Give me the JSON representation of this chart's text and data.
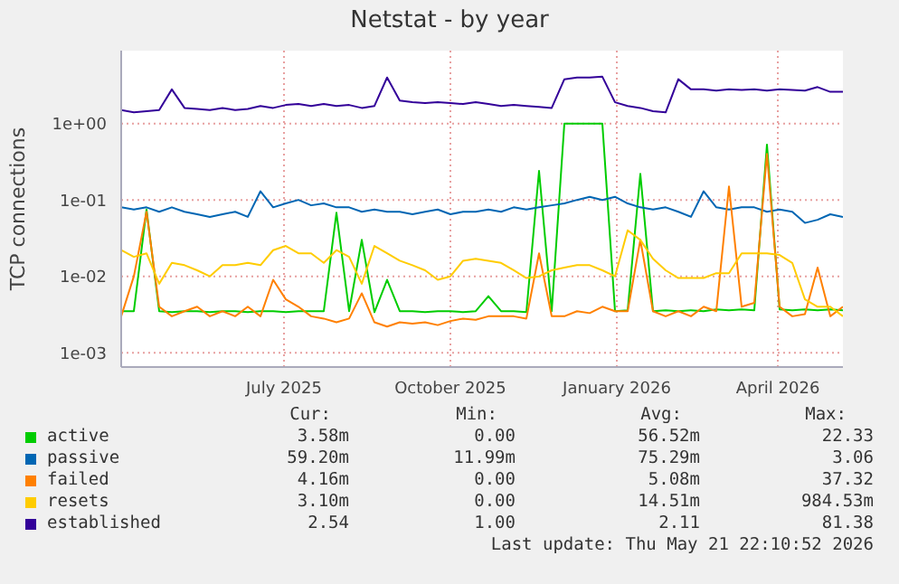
{
  "chart_data": {
    "type": "line",
    "title": "Netstat - by year",
    "ylabel": "TCP connections",
    "log": true,
    "grid": true,
    "legend": "bottom",
    "xlim": [
      "2025-04-17",
      "2026-05-21"
    ],
    "xticks": [
      {
        "value": "2025-07-16",
        "label": "July 2025"
      },
      {
        "value": "2025-10-16",
        "label": "October 2025"
      },
      {
        "value": "2026-01-16",
        "label": "January 2026"
      },
      {
        "value": "2026-04-15",
        "label": "April 2026"
      }
    ],
    "ylim": [
      0.00065,
      9
    ],
    "yticks": [
      {
        "value": 0.001,
        "label": "1e-03"
      },
      {
        "value": 0.01,
        "label": "1e-02"
      },
      {
        "value": 0.1,
        "label": "1e-01"
      },
      {
        "value": 1,
        "label": "1e+00"
      }
    ],
    "x": [
      "2025-04-17",
      "2025-04-24",
      "2025-05-01",
      "2025-05-08",
      "2025-05-15",
      "2025-05-22",
      "2025-05-29",
      "2025-06-05",
      "2025-06-12",
      "2025-06-19",
      "2025-06-26",
      "2025-07-03",
      "2025-07-10",
      "2025-07-17",
      "2025-07-24",
      "2025-07-31",
      "2025-08-07",
      "2025-08-14",
      "2025-08-21",
      "2025-08-28",
      "2025-09-04",
      "2025-09-11",
      "2025-09-18",
      "2025-09-25",
      "2025-10-02",
      "2025-10-09",
      "2025-10-16",
      "2025-10-23",
      "2025-10-30",
      "2025-11-06",
      "2025-11-13",
      "2025-11-20",
      "2025-11-27",
      "2025-12-04",
      "2025-12-11",
      "2025-12-18",
      "2025-12-25",
      "2026-01-01",
      "2026-01-08",
      "2026-01-15",
      "2026-01-22",
      "2026-01-29",
      "2026-02-05",
      "2026-02-12",
      "2026-02-19",
      "2026-02-26",
      "2026-03-05",
      "2026-03-12",
      "2026-03-19",
      "2026-03-26",
      "2026-04-02",
      "2026-04-09",
      "2026-04-16",
      "2026-04-23",
      "2026-04-30",
      "2026-05-07",
      "2026-05-14",
      "2026-05-21"
    ],
    "series": [
      {
        "name": "active",
        "color": "#00cc00",
        "values": [
          0.0035,
          0.0035,
          0.075,
          0.0035,
          0.0034,
          0.0035,
          0.0035,
          0.0034,
          0.0035,
          0.0035,
          0.0034,
          0.0035,
          0.0035,
          0.0034,
          0.0035,
          0.0035,
          0.0035,
          0.068,
          0.0035,
          0.03,
          0.0034,
          0.009,
          0.0035,
          0.0035,
          0.0034,
          0.0035,
          0.0035,
          0.0034,
          0.0035,
          0.0055,
          0.0035,
          0.0035,
          0.0034,
          0.24,
          0.0035,
          1.0,
          1.0,
          1.0,
          1.0,
          0.0035,
          0.0036,
          0.22,
          0.0035,
          0.0036,
          0.0035,
          0.0036,
          0.0035,
          0.0037,
          0.0036,
          0.0037,
          0.0036,
          0.53,
          0.0037,
          0.0036,
          0.0037,
          0.0036,
          0.0037,
          0.0036
        ]
      },
      {
        "name": "passive",
        "color": "#0066b3",
        "values": [
          0.08,
          0.075,
          0.08,
          0.07,
          0.08,
          0.07,
          0.065,
          0.06,
          0.065,
          0.07,
          0.06,
          0.13,
          0.08,
          0.09,
          0.1,
          0.085,
          0.09,
          0.08,
          0.08,
          0.07,
          0.075,
          0.07,
          0.07,
          0.065,
          0.07,
          0.075,
          0.065,
          0.07,
          0.07,
          0.075,
          0.07,
          0.08,
          0.075,
          0.08,
          0.085,
          0.09,
          0.1,
          0.11,
          0.1,
          0.11,
          0.09,
          0.08,
          0.075,
          0.08,
          0.07,
          0.06,
          0.13,
          0.08,
          0.075,
          0.08,
          0.08,
          0.07,
          0.075,
          0.07,
          0.05,
          0.055,
          0.065,
          0.06
        ]
      },
      {
        "name": "failed",
        "color": "#ff8000",
        "values": [
          0.003,
          0.01,
          0.07,
          0.004,
          0.003,
          0.0035,
          0.004,
          0.003,
          0.0035,
          0.003,
          0.004,
          0.003,
          0.009,
          0.005,
          0.004,
          0.003,
          0.0028,
          0.0025,
          0.0028,
          0.006,
          0.0025,
          0.0022,
          0.0025,
          0.0024,
          0.0025,
          0.0023,
          0.0026,
          0.0028,
          0.0027,
          0.003,
          0.003,
          0.003,
          0.0028,
          0.02,
          0.003,
          0.003,
          0.0035,
          0.0033,
          0.004,
          0.0035,
          0.0035,
          0.03,
          0.0035,
          0.003,
          0.0035,
          0.003,
          0.004,
          0.0035,
          0.15,
          0.004,
          0.0045,
          0.4,
          0.004,
          0.003,
          0.0032,
          0.013,
          0.003,
          0.004
        ]
      },
      {
        "name": "resets",
        "color": "#ffcc00",
        "values": [
          0.022,
          0.018,
          0.02,
          0.008,
          0.015,
          0.014,
          0.012,
          0.01,
          0.014,
          0.014,
          0.015,
          0.014,
          0.022,
          0.025,
          0.02,
          0.02,
          0.015,
          0.022,
          0.018,
          0.008,
          0.025,
          0.02,
          0.016,
          0.014,
          0.012,
          0.009,
          0.01,
          0.016,
          0.017,
          0.016,
          0.015,
          0.012,
          0.0095,
          0.01,
          0.012,
          0.013,
          0.014,
          0.014,
          0.012,
          0.01,
          0.04,
          0.03,
          0.017,
          0.012,
          0.0095,
          0.0095,
          0.0095,
          0.011,
          0.011,
          0.02,
          0.02,
          0.02,
          0.019,
          0.015,
          0.005,
          0.004,
          0.004,
          0.003
        ]
      },
      {
        "name": "established",
        "color": "#330099",
        "values": [
          1.5,
          1.4,
          1.45,
          1.5,
          2.8,
          1.6,
          1.55,
          1.5,
          1.6,
          1.5,
          1.55,
          1.7,
          1.6,
          1.75,
          1.8,
          1.7,
          1.8,
          1.7,
          1.75,
          1.6,
          1.7,
          4.0,
          2.0,
          1.9,
          1.85,
          1.9,
          1.85,
          1.8,
          1.9,
          1.8,
          1.7,
          1.75,
          1.7,
          1.65,
          1.6,
          3.8,
          4.0,
          4.0,
          4.1,
          1.9,
          1.7,
          1.6,
          1.45,
          1.4,
          3.8,
          2.8,
          2.8,
          2.7,
          2.8,
          2.75,
          2.8,
          2.7,
          2.8,
          2.75,
          2.7,
          3.0,
          2.6,
          2.6
        ]
      }
    ],
    "annotations": [
      "Cur:",
      "Min:",
      "Avg:",
      "Max:",
      "3.58m",
      "0.00",
      "56.52m",
      "22.33",
      "59.20m",
      "11.99m",
      "75.29m",
      "3.06",
      "4.16m",
      "0.00",
      "5.08m",
      "37.32",
      "3.10m",
      "0.00",
      "14.51m",
      "984.53m",
      "2.54",
      "1.00",
      "2.11",
      "81.38",
      "Last update: Thu May 21 22:10:52 2026"
    ]
  }
}
